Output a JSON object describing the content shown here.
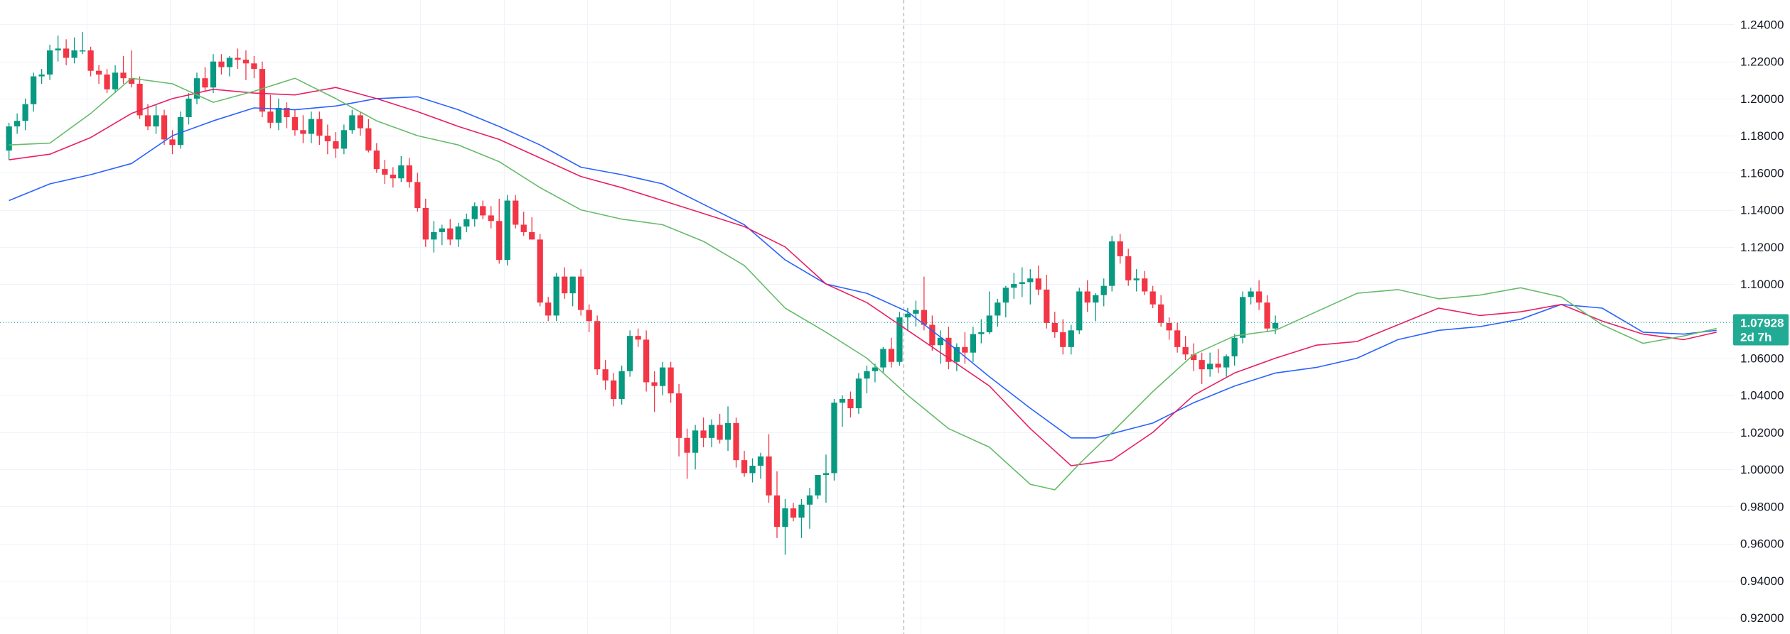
{
  "colors": {
    "up": "#089981",
    "down": "#f23645",
    "ma_fast": "#66bb6a",
    "ma_mid": "#e91e63",
    "ma_slow": "#2962ff",
    "grid": "#f0f3fa",
    "crosshair": "#9598a1",
    "last_price": "#22ab94"
  },
  "chart_data": {
    "type": "candlestick",
    "grid": true,
    "y_axis_position": "right",
    "ylim": [
      0.912,
      1.244
    ],
    "y_ticks": [
      "1.24000",
      "1.22000",
      "1.20000",
      "1.18000",
      "1.16000",
      "1.14000",
      "1.12000",
      "1.10000",
      "1.08000",
      "1.06000",
      "1.04000",
      "1.02000",
      "1.00000",
      "0.98000",
      "0.96000",
      "0.94000",
      "0.92000"
    ],
    "candles": [
      [
        1.172,
        1.187,
        1.167,
        1.185
      ],
      [
        1.185,
        1.192,
        1.181,
        1.188
      ],
      [
        1.188,
        1.2,
        1.183,
        1.197
      ],
      [
        1.197,
        1.214,
        1.193,
        1.212
      ],
      [
        1.212,
        1.216,
        1.208,
        1.213
      ],
      [
        1.213,
        1.229,
        1.21,
        1.226
      ],
      [
        1.226,
        1.234,
        1.22,
        1.227
      ],
      [
        1.227,
        1.232,
        1.218,
        1.222
      ],
      [
        1.222,
        1.233,
        1.219,
        1.226
      ],
      [
        1.226,
        1.236,
        1.224,
        1.226
      ],
      [
        1.226,
        1.228,
        1.212,
        1.215
      ],
      [
        1.215,
        1.218,
        1.208,
        1.213
      ],
      [
        1.213,
        1.216,
        1.203,
        1.205
      ],
      [
        1.205,
        1.218,
        1.203,
        1.214
      ],
      [
        1.214,
        1.223,
        1.208,
        1.211
      ],
      [
        1.211,
        1.226,
        1.206,
        1.208
      ],
      [
        1.208,
        1.212,
        1.189,
        1.191
      ],
      [
        1.191,
        1.197,
        1.183,
        1.185
      ],
      [
        1.185,
        1.197,
        1.181,
        1.191
      ],
      [
        1.191,
        1.194,
        1.175,
        1.178
      ],
      [
        1.178,
        1.183,
        1.17,
        1.175
      ],
      [
        1.175,
        1.193,
        1.173,
        1.19
      ],
      [
        1.19,
        1.203,
        1.186,
        1.2
      ],
      [
        1.2,
        1.214,
        1.197,
        1.211
      ],
      [
        1.211,
        1.217,
        1.204,
        1.206
      ],
      [
        1.206,
        1.224,
        1.203,
        1.22
      ],
      [
        1.22,
        1.224,
        1.213,
        1.217
      ],
      [
        1.217,
        1.223,
        1.212,
        1.222
      ],
      [
        1.222,
        1.227,
        1.216,
        1.221
      ],
      [
        1.221,
        1.226,
        1.21,
        1.219
      ],
      [
        1.219,
        1.223,
        1.211,
        1.216
      ],
      [
        1.216,
        1.22,
        1.19,
        1.193
      ],
      [
        1.193,
        1.202,
        1.184,
        1.187
      ],
      [
        1.187,
        1.2,
        1.183,
        1.195
      ],
      [
        1.195,
        1.198,
        1.184,
        1.19
      ],
      [
        1.19,
        1.194,
        1.18,
        1.183
      ],
      [
        1.183,
        1.191,
        1.176,
        1.181
      ],
      [
        1.181,
        1.193,
        1.176,
        1.189
      ],
      [
        1.189,
        1.193,
        1.175,
        1.18
      ],
      [
        1.18,
        1.186,
        1.17,
        1.177
      ],
      [
        1.177,
        1.182,
        1.168,
        1.173
      ],
      [
        1.173,
        1.186,
        1.17,
        1.183
      ],
      [
        1.183,
        1.194,
        1.181,
        1.191
      ],
      [
        1.191,
        1.193,
        1.18,
        1.184
      ],
      [
        1.184,
        1.189,
        1.171,
        1.172
      ],
      [
        1.172,
        1.176,
        1.16,
        1.162
      ],
      [
        1.162,
        1.167,
        1.154,
        1.159
      ],
      [
        1.159,
        1.163,
        1.152,
        1.157
      ],
      [
        1.157,
        1.169,
        1.155,
        1.164
      ],
      [
        1.164,
        1.168,
        1.152,
        1.155
      ],
      [
        1.155,
        1.16,
        1.139,
        1.141
      ],
      [
        1.141,
        1.146,
        1.12,
        1.124
      ],
      [
        1.124,
        1.134,
        1.117,
        1.128
      ],
      [
        1.128,
        1.132,
        1.121,
        1.13
      ],
      [
        1.13,
        1.135,
        1.121,
        1.124
      ],
      [
        1.124,
        1.133,
        1.12,
        1.131
      ],
      [
        1.131,
        1.138,
        1.128,
        1.135
      ],
      [
        1.135,
        1.144,
        1.131,
        1.142
      ],
      [
        1.142,
        1.145,
        1.135,
        1.137
      ],
      [
        1.137,
        1.142,
        1.13,
        1.134
      ],
      [
        1.134,
        1.146,
        1.111,
        1.113
      ],
      [
        1.113,
        1.148,
        1.11,
        1.145
      ],
      [
        1.145,
        1.148,
        1.13,
        1.132
      ],
      [
        1.132,
        1.139,
        1.126,
        1.128
      ],
      [
        1.128,
        1.136,
        1.124,
        1.124
      ],
      [
        1.124,
        1.127,
        1.088,
        1.09
      ],
      [
        1.09,
        1.093,
        1.08,
        1.083
      ],
      [
        1.083,
        1.106,
        1.08,
        1.104
      ],
      [
        1.104,
        1.109,
        1.092,
        1.095
      ],
      [
        1.095,
        1.104,
        1.088,
        1.104
      ],
      [
        1.104,
        1.108,
        1.083,
        1.086
      ],
      [
        1.086,
        1.089,
        1.074,
        1.08
      ],
      [
        1.08,
        1.083,
        1.051,
        1.054
      ],
      [
        1.054,
        1.059,
        1.043,
        1.048
      ],
      [
        1.048,
        1.052,
        1.034,
        1.038
      ],
      [
        1.038,
        1.056,
        1.035,
        1.053
      ],
      [
        1.053,
        1.075,
        1.05,
        1.072
      ],
      [
        1.072,
        1.076,
        1.066,
        1.07
      ],
      [
        1.07,
        1.075,
        1.042,
        1.047
      ],
      [
        1.047,
        1.053,
        1.031,
        1.045
      ],
      [
        1.045,
        1.058,
        1.04,
        1.055
      ],
      [
        1.055,
        1.058,
        1.036,
        1.041
      ],
      [
        1.041,
        1.046,
        1.007,
        1.017
      ],
      [
        1.017,
        1.022,
        0.995,
        1.009
      ],
      [
        1.009,
        1.024,
        1.0,
        1.021
      ],
      [
        1.021,
        1.028,
        1.012,
        1.017
      ],
      [
        1.017,
        1.027,
        1.012,
        1.024
      ],
      [
        1.024,
        1.03,
        1.014,
        1.016
      ],
      [
        1.016,
        1.034,
        1.01,
        1.025
      ],
      [
        1.025,
        1.028,
        1.001,
        1.005
      ],
      [
        1.005,
        1.01,
        0.996,
        0.998
      ],
      [
        0.998,
        1.006,
        0.993,
        1.002
      ],
      [
        1.002,
        1.009,
        0.995,
        1.007
      ],
      [
        1.007,
        1.019,
        0.982,
        0.986
      ],
      [
        0.986,
        0.999,
        0.963,
        0.969
      ],
      [
        0.969,
        0.984,
        0.954,
        0.979
      ],
      [
        0.979,
        0.982,
        0.972,
        0.974
      ],
      [
        0.974,
        0.984,
        0.963,
        0.981
      ],
      [
        0.981,
        0.99,
        0.968,
        0.986
      ],
      [
        0.986,
        0.996,
        0.984,
        0.997
      ],
      [
        0.997,
        1.008,
        0.982,
        0.998
      ],
      [
        0.998,
        1.038,
        0.994,
        1.036
      ],
      [
        1.036,
        1.04,
        1.023,
        1.038
      ],
      [
        1.038,
        1.042,
        1.028,
        1.033
      ],
      [
        1.033,
        1.052,
        1.03,
        1.049
      ],
      [
        1.049,
        1.056,
        1.041,
        1.053
      ],
      [
        1.053,
        1.057,
        1.047,
        1.055
      ],
      [
        1.055,
        1.066,
        1.052,
        1.065
      ],
      [
        1.065,
        1.071,
        1.055,
        1.058
      ],
      [
        1.058,
        1.085,
        1.056,
        1.082
      ],
      [
        1.082,
        1.087,
        1.075,
        1.084
      ],
      [
        1.084,
        1.091,
        1.077,
        1.086
      ],
      [
        1.086,
        1.104,
        1.075,
        1.078
      ],
      [
        1.078,
        1.083,
        1.064,
        1.067
      ],
      [
        1.067,
        1.075,
        1.057,
        1.071
      ],
      [
        1.071,
        1.077,
        1.054,
        1.058
      ],
      [
        1.058,
        1.068,
        1.053,
        1.066
      ],
      [
        1.066,
        1.074,
        1.057,
        1.063
      ],
      [
        1.063,
        1.077,
        1.058,
        1.073
      ],
      [
        1.073,
        1.081,
        1.068,
        1.074
      ],
      [
        1.074,
        1.096,
        1.073,
        1.083
      ],
      [
        1.083,
        1.092,
        1.077,
        1.09
      ],
      [
        1.09,
        1.099,
        1.082,
        1.098
      ],
      [
        1.098,
        1.106,
        1.092,
        1.1
      ],
      [
        1.1,
        1.109,
        1.093,
        1.101
      ],
      [
        1.101,
        1.108,
        1.089,
        1.103
      ],
      [
        1.103,
        1.11,
        1.094,
        1.097
      ],
      [
        1.097,
        1.105,
        1.076,
        1.079
      ],
      [
        1.079,
        1.085,
        1.071,
        1.074
      ],
      [
        1.074,
        1.081,
        1.062,
        1.066
      ],
      [
        1.066,
        1.078,
        1.062,
        1.075
      ],
      [
        1.075,
        1.098,
        1.073,
        1.096
      ],
      [
        1.096,
        1.102,
        1.085,
        1.09
      ],
      [
        1.09,
        1.095,
        1.08,
        1.094
      ],
      [
        1.094,
        1.103,
        1.088,
        1.099
      ],
      [
        1.099,
        1.126,
        1.096,
        1.123
      ],
      [
        1.123,
        1.127,
        1.111,
        1.115
      ],
      [
        1.115,
        1.119,
        1.099,
        1.102
      ],
      [
        1.102,
        1.108,
        1.096,
        1.103
      ],
      [
        1.103,
        1.107,
        1.094,
        1.096
      ],
      [
        1.096,
        1.099,
        1.087,
        1.089
      ],
      [
        1.089,
        1.094,
        1.077,
        1.079
      ],
      [
        1.079,
        1.082,
        1.07,
        1.075
      ],
      [
        1.075,
        1.079,
        1.063,
        1.066
      ],
      [
        1.066,
        1.072,
        1.059,
        1.062
      ],
      [
        1.062,
        1.068,
        1.053,
        1.059
      ],
      [
        1.059,
        1.063,
        1.046,
        1.054
      ],
      [
        1.054,
        1.063,
        1.05,
        1.057
      ],
      [
        1.057,
        1.065,
        1.052,
        1.055
      ],
      [
        1.055,
        1.062,
        1.05,
        1.061
      ],
      [
        1.061,
        1.073,
        1.056,
        1.071
      ],
      [
        1.071,
        1.096,
        1.068,
        1.093
      ],
      [
        1.093,
        1.098,
        1.089,
        1.096
      ],
      [
        1.096,
        1.102,
        1.086,
        1.09
      ],
      [
        1.09,
        1.094,
        1.074,
        1.076
      ],
      [
        1.076,
        1.083,
        1.073,
        1.079
      ]
    ],
    "x_range": [
      -1.1,
      211.2
    ],
    "crosshair_x_index": 109.5,
    "ma_fast_points": [
      [
        0,
        1.175
      ],
      [
        5,
        1.176
      ],
      [
        10,
        1.192
      ],
      [
        15,
        1.211
      ],
      [
        20,
        1.208
      ],
      [
        25,
        1.198
      ],
      [
        30,
        1.204
      ],
      [
        35,
        1.211
      ],
      [
        40,
        1.2
      ],
      [
        45,
        1.188
      ],
      [
        50,
        1.18
      ],
      [
        55,
        1.175
      ],
      [
        60,
        1.166
      ],
      [
        65,
        1.152
      ],
      [
        70,
        1.14
      ],
      [
        75,
        1.135
      ],
      [
        80,
        1.132
      ],
      [
        85,
        1.123
      ],
      [
        90,
        1.11
      ],
      [
        95,
        1.087
      ],
      [
        100,
        1.074
      ],
      [
        105,
        1.06
      ],
      [
        110,
        1.04
      ],
      [
        115,
        1.022
      ],
      [
        120,
        1.012
      ],
      [
        125,
        0.992
      ],
      [
        128,
        0.989
      ],
      [
        131,
        1.003
      ],
      [
        135,
        1.02
      ],
      [
        140,
        1.042
      ],
      [
        145,
        1.062
      ],
      [
        150,
        1.072
      ],
      [
        155,
        1.075
      ],
      [
        160,
        1.085
      ],
      [
        165,
        1.095
      ],
      [
        170,
        1.097
      ],
      [
        175,
        1.092
      ],
      [
        180,
        1.094
      ],
      [
        185,
        1.098
      ],
      [
        190,
        1.093
      ],
      [
        195,
        1.078
      ],
      [
        200,
        1.068
      ],
      [
        205,
        1.072
      ],
      [
        209,
        1.076
      ]
    ],
    "ma_mid_points": [
      [
        0,
        1.167
      ],
      [
        5,
        1.17
      ],
      [
        10,
        1.179
      ],
      [
        15,
        1.192
      ],
      [
        20,
        1.2
      ],
      [
        25,
        1.205
      ],
      [
        30,
        1.203
      ],
      [
        35,
        1.202
      ],
      [
        40,
        1.206
      ],
      [
        45,
        1.2
      ],
      [
        50,
        1.193
      ],
      [
        55,
        1.185
      ],
      [
        60,
        1.178
      ],
      [
        65,
        1.168
      ],
      [
        70,
        1.158
      ],
      [
        75,
        1.152
      ],
      [
        80,
        1.145
      ],
      [
        85,
        1.138
      ],
      [
        90,
        1.131
      ],
      [
        95,
        1.12
      ],
      [
        100,
        1.1
      ],
      [
        105,
        1.09
      ],
      [
        110,
        1.075
      ],
      [
        115,
        1.06
      ],
      [
        120,
        1.045
      ],
      [
        125,
        1.022
      ],
      [
        130,
        1.002
      ],
      [
        135,
        1.005
      ],
      [
        140,
        1.02
      ],
      [
        145,
        1.04
      ],
      [
        150,
        1.052
      ],
      [
        155,
        1.06
      ],
      [
        160,
        1.067
      ],
      [
        165,
        1.069
      ],
      [
        170,
        1.078
      ],
      [
        175,
        1.087
      ],
      [
        180,
        1.083
      ],
      [
        185,
        1.085
      ],
      [
        190,
        1.089
      ],
      [
        195,
        1.08
      ],
      [
        200,
        1.073
      ],
      [
        205,
        1.07
      ],
      [
        209,
        1.074
      ]
    ],
    "ma_slow_points": [
      [
        0,
        1.145
      ],
      [
        5,
        1.154
      ],
      [
        10,
        1.159
      ],
      [
        15,
        1.165
      ],
      [
        20,
        1.18
      ],
      [
        25,
        1.188
      ],
      [
        30,
        1.195
      ],
      [
        35,
        1.194
      ],
      [
        40,
        1.196
      ],
      [
        45,
        1.2
      ],
      [
        50,
        1.201
      ],
      [
        55,
        1.194
      ],
      [
        60,
        1.185
      ],
      [
        65,
        1.175
      ],
      [
        70,
        1.163
      ],
      [
        75,
        1.159
      ],
      [
        80,
        1.154
      ],
      [
        85,
        1.143
      ],
      [
        90,
        1.132
      ],
      [
        95,
        1.113
      ],
      [
        100,
        1.1
      ],
      [
        105,
        1.095
      ],
      [
        110,
        1.085
      ],
      [
        115,
        1.068
      ],
      [
        120,
        1.05
      ],
      [
        125,
        1.033
      ],
      [
        130,
        1.017
      ],
      [
        133,
        1.017
      ],
      [
        140,
        1.025
      ],
      [
        145,
        1.036
      ],
      [
        150,
        1.045
      ],
      [
        155,
        1.052
      ],
      [
        160,
        1.055
      ],
      [
        165,
        1.06
      ],
      [
        170,
        1.07
      ],
      [
        175,
        1.075
      ],
      [
        180,
        1.077
      ],
      [
        185,
        1.081
      ],
      [
        190,
        1.089
      ],
      [
        195,
        1.087
      ],
      [
        200,
        1.074
      ],
      [
        205,
        1.073
      ],
      [
        209,
        1.075
      ]
    ],
    "last_price": {
      "value": 1.07928,
      "label": "1.07928",
      "countdown": "2d 7h"
    }
  }
}
